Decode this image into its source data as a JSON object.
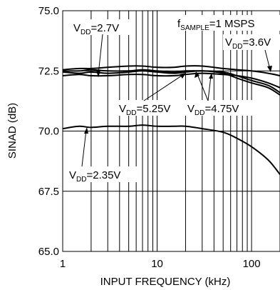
{
  "chart_data": {
    "type": "line",
    "xlabel": "INPUT FREQUENCY (kHz)",
    "ylabel": "SINAD (dB)",
    "x_scale": "log",
    "xlim": [
      1,
      200
    ],
    "ylim": [
      65.0,
      75.0
    ],
    "x_ticks": [
      {
        "value": 1,
        "label": "1"
      },
      {
        "value": 10,
        "label": "10"
      },
      {
        "value": 100,
        "label": "100"
      }
    ],
    "y_ticks": [
      {
        "value": 65.0,
        "label": "65.0"
      },
      {
        "value": 67.5,
        "label": "67.5"
      },
      {
        "value": 70.0,
        "label": "70.0"
      },
      {
        "value": 72.5,
        "label": "72.5"
      },
      {
        "value": 75.0,
        "label": "75.0"
      }
    ],
    "grid": true,
    "series": [
      {
        "name": "VDD=2.7V",
        "x": [
          1,
          1.5,
          2,
          3,
          5,
          7,
          10,
          15,
          20,
          30,
          50,
          70,
          100,
          150,
          200
        ],
        "y": [
          72.3,
          72.35,
          72.3,
          72.3,
          72.35,
          72.35,
          72.3,
          72.3,
          72.35,
          72.4,
          72.35,
          72.3,
          72.2,
          72.0,
          71.8
        ]
      },
      {
        "name": "VDD=5.25V",
        "x": [
          1,
          1.5,
          2,
          3,
          5,
          7,
          10,
          15,
          20,
          30,
          50,
          70,
          100,
          150,
          200
        ],
        "y": [
          72.5,
          72.5,
          72.55,
          72.5,
          72.5,
          72.55,
          72.5,
          72.45,
          72.5,
          72.5,
          72.45,
          72.3,
          72.1,
          71.9,
          71.6
        ]
      },
      {
        "name": "VDD=4.75V",
        "x": [
          1,
          1.5,
          2,
          3,
          5,
          7,
          10,
          15,
          20,
          30,
          50,
          70,
          100,
          150,
          200
        ],
        "y": [
          72.45,
          72.4,
          72.45,
          72.4,
          72.45,
          72.5,
          72.45,
          72.4,
          72.45,
          72.5,
          72.4,
          72.2,
          72.0,
          71.8,
          71.5
        ]
      },
      {
        "name": "VDD=3.6V",
        "x": [
          1,
          1.5,
          2,
          3,
          5,
          7,
          10,
          15,
          20,
          30,
          50,
          70,
          100,
          150,
          200
        ],
        "y": [
          72.55,
          72.6,
          72.6,
          72.65,
          72.7,
          72.7,
          72.65,
          72.65,
          72.7,
          72.7,
          72.6,
          72.55,
          72.5,
          72.4,
          72.3
        ]
      },
      {
        "name": "VDD=2.35V",
        "x": [
          1,
          1.5,
          2,
          3,
          5,
          7,
          10,
          15,
          20,
          30,
          50,
          70,
          100,
          150,
          200
        ],
        "y": [
          70.1,
          70.2,
          70.15,
          70.2,
          70.2,
          70.25,
          70.2,
          70.2,
          70.2,
          70.1,
          69.95,
          69.7,
          69.35,
          68.8,
          68.2
        ]
      }
    ]
  },
  "annotations": {
    "vdd_2_7": {
      "main": "V",
      "sub": "DD",
      "rest": "=2.7V"
    },
    "fsample": {
      "main": "f",
      "sub": "SAMPLE",
      "rest": "=1 MSPS"
    },
    "vdd_3_6": {
      "main": "V",
      "sub": "DD",
      "rest": "=3.6V"
    },
    "vdd_5_25": {
      "main": "V",
      "sub": "DD",
      "rest": "=5.25V"
    },
    "vdd_4_75": {
      "main": "V",
      "sub": "DD",
      "rest": "=4.75V"
    },
    "vdd_2_35": {
      "main": "V",
      "sub": "DD",
      "rest": "=2.35V"
    }
  }
}
